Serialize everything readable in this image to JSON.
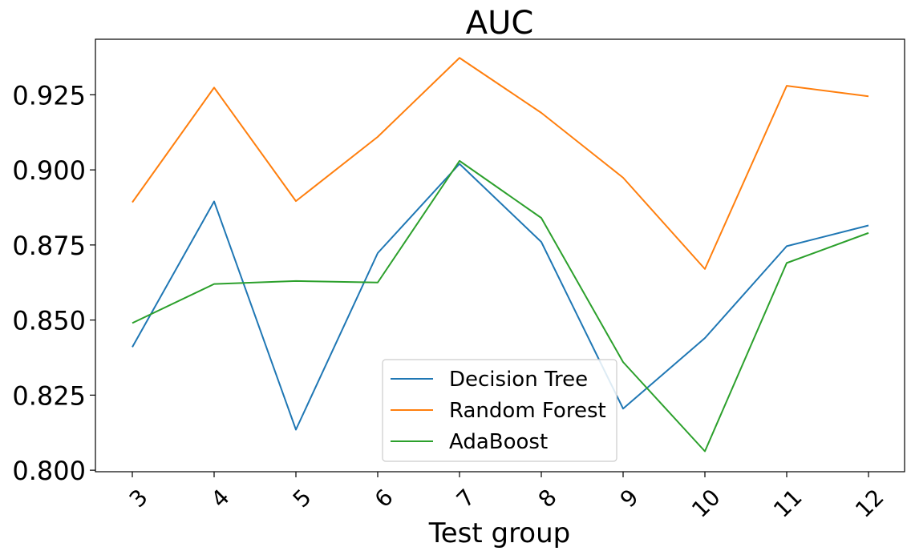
{
  "chart_data": {
    "type": "line",
    "title": "AUC",
    "xlabel": "Test group",
    "ylabel": "",
    "categories": [
      "3",
      "4",
      "5",
      "6",
      "7",
      "8",
      "9",
      "10",
      "11",
      "12"
    ],
    "yticks": [
      "0.800",
      "0.825",
      "0.850",
      "0.875",
      "0.900",
      "0.925"
    ],
    "ylim": [
      0.7995,
      0.9435
    ],
    "grid": false,
    "legend_position": "lower-center",
    "series": [
      {
        "name": "Decision Tree",
        "color": "#1f77b4",
        "values": [
          0.841,
          0.8895,
          0.8135,
          0.8723,
          0.902,
          0.876,
          0.8205,
          0.844,
          0.8746,
          0.8815
        ]
      },
      {
        "name": "Random Forest",
        "color": "#ff7f0e",
        "values": [
          0.8892,
          0.9274,
          0.8896,
          0.911,
          0.9373,
          0.919,
          0.8974,
          0.867,
          0.928,
          0.9245
        ]
      },
      {
        "name": "AdaBoost",
        "color": "#2ca02c",
        "values": [
          0.849,
          0.862,
          0.863,
          0.8625,
          0.903,
          0.884,
          0.836,
          0.8063,
          0.869,
          0.879
        ]
      }
    ]
  }
}
